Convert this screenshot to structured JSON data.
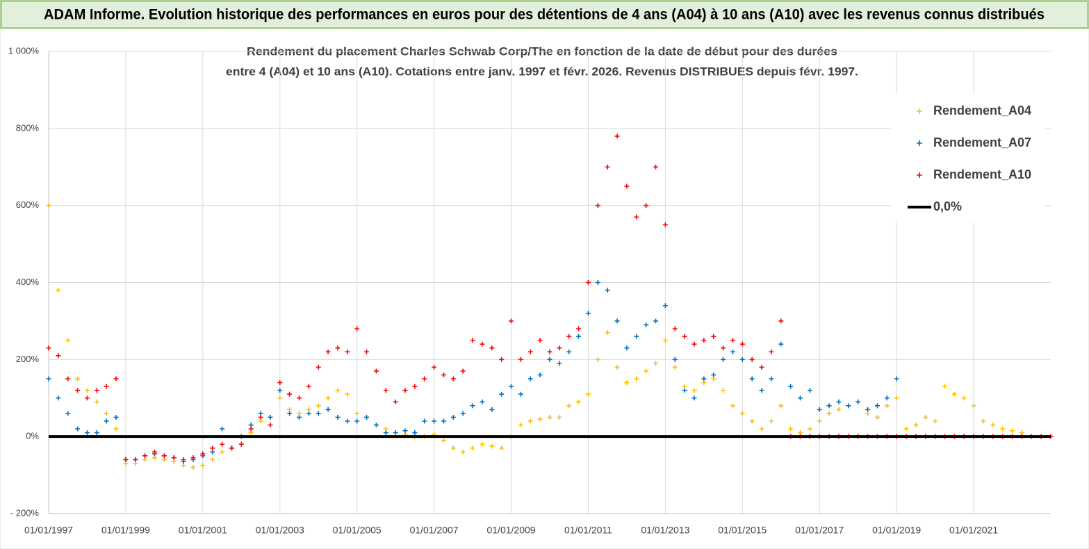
{
  "chart_data": {
    "type": "scatter",
    "title": "ADAM Informe. Evolution historique des performances en euros pour des détentions de 4 ans (A04) à 10 ans (A10) avec les revenus connus distribués",
    "subtitle": [
      "Rendement du placement Charles Schwab Corp/The en fonction de la date de début pour des durées",
      "entre 4 (A04) et 10 ans (A10).  Cotations entre janv. 1997 et févr. 2026. Revenus DISTRIBUES depuis févr. 1997."
    ],
    "xlim": [
      1997,
      2023
    ],
    "xticks": [
      {
        "value": 1997,
        "label": "01/01/1997"
      },
      {
        "value": 1999,
        "label": "01/01/1999"
      },
      {
        "value": 2001,
        "label": "01/01/2001"
      },
      {
        "value": 2003,
        "label": "01/01/2003"
      },
      {
        "value": 2005,
        "label": "01/01/2005"
      },
      {
        "value": 2007,
        "label": "01/01/2007"
      },
      {
        "value": 2009,
        "label": "01/01/2009"
      },
      {
        "value": 2011,
        "label": "01/01/2011"
      },
      {
        "value": 2013,
        "label": "01/01/2013"
      },
      {
        "value": 2015,
        "label": "01/01/2015"
      },
      {
        "value": 2017,
        "label": "01/01/2017"
      },
      {
        "value": 2019,
        "label": "01/01/2019"
      },
      {
        "value": 2021,
        "label": "01/01/2021"
      }
    ],
    "ylim": [
      -200,
      1000
    ],
    "yticks": [
      {
        "value": -200,
        "label": "- 200%"
      },
      {
        "value": 0,
        "label": "0%"
      },
      {
        "value": 200,
        "label": "200%"
      },
      {
        "value": 400,
        "label": "400%"
      },
      {
        "value": 600,
        "label": "600%"
      },
      {
        "value": 800,
        "label": "800%"
      },
      {
        "value": 1000,
        "label": "1 000%"
      }
    ],
    "grid": true,
    "legend": "right",
    "series": [
      {
        "name": "Rendement_A04",
        "color": "#ffc000",
        "x": [
          1997,
          1997.25,
          1997.5,
          1997.75,
          1998,
          1998.25,
          1998.5,
          1998.75,
          1999,
          1999.25,
          1999.5,
          1999.75,
          2000,
          2000.25,
          2000.5,
          2000.75,
          2001,
          2001.25,
          2001.5,
          2001.75,
          2002,
          2002.25,
          2002.5,
          2002.75,
          2003,
          2003.25,
          2003.5,
          2003.75,
          2004,
          2004.25,
          2004.5,
          2004.75,
          2005,
          2005.25,
          2005.5,
          2005.75,
          2006,
          2006.25,
          2006.5,
          2006.75,
          2007,
          2007.25,
          2007.5,
          2007.75,
          2008,
          2008.25,
          2008.5,
          2008.75,
          2009,
          2009.25,
          2009.5,
          2009.75,
          2010,
          2010.25,
          2010.5,
          2010.75,
          2011,
          2011.25,
          2011.5,
          2011.75,
          2012,
          2012.25,
          2012.5,
          2012.75,
          2013,
          2013.25,
          2013.5,
          2013.75,
          2014,
          2014.25,
          2014.5,
          2014.75,
          2015,
          2015.25,
          2015.5,
          2015.75,
          2016,
          2016.25,
          2016.5,
          2016.75,
          2017,
          2017.25,
          2017.5,
          2017.75,
          2018,
          2018.25,
          2018.5,
          2018.75,
          2019,
          2019.25,
          2019.5,
          2019.75,
          2020,
          2020.25,
          2020.5,
          2020.75,
          2021,
          2021.25,
          2021.5,
          2021.75,
          2022,
          2022.25
        ],
        "values": [
          600,
          380,
          250,
          150,
          120,
          90,
          60,
          20,
          -70,
          -70,
          -60,
          -55,
          -60,
          -65,
          -75,
          -80,
          -75,
          -60,
          -40,
          -30,
          -20,
          10,
          40,
          50,
          100,
          70,
          60,
          70,
          80,
          100,
          120,
          110,
          60,
          50,
          30,
          20,
          10,
          5,
          0,
          0,
          5,
          -10,
          -30,
          -40,
          -30,
          -20,
          -25,
          -30,
          0,
          30,
          40,
          45,
          50,
          50,
          80,
          90,
          110,
          200,
          270,
          180,
          140,
          150,
          170,
          190,
          250,
          180,
          130,
          120,
          140,
          150,
          120,
          80,
          60,
          40,
          20,
          40,
          80,
          20,
          10,
          20,
          40,
          60,
          70,
          80,
          90,
          60,
          50,
          80,
          100,
          20,
          30,
          50,
          40,
          130,
          110,
          100,
          80,
          40,
          30,
          20,
          15,
          10
        ]
      },
      {
        "name": "Rendement_A07",
        "color": "#0070c0",
        "x": [
          1997,
          1997.25,
          1997.5,
          1997.75,
          1998,
          1998.25,
          1998.5,
          1998.75,
          1999,
          1999.25,
          1999.5,
          1999.75,
          2000,
          2000.25,
          2000.5,
          2000.75,
          2001,
          2001.25,
          2001.5,
          2001.75,
          2002,
          2002.25,
          2002.5,
          2002.75,
          2003,
          2003.25,
          2003.5,
          2003.75,
          2004,
          2004.25,
          2004.5,
          2004.75,
          2005,
          2005.25,
          2005.5,
          2005.75,
          2006,
          2006.25,
          2006.5,
          2006.75,
          2007,
          2007.25,
          2007.5,
          2007.75,
          2008,
          2008.25,
          2008.5,
          2008.75,
          2009,
          2009.25,
          2009.5,
          2009.75,
          2010,
          2010.25,
          2010.5,
          2010.75,
          2011,
          2011.25,
          2011.5,
          2011.75,
          2012,
          2012.25,
          2012.5,
          2012.75,
          2013,
          2013.25,
          2013.5,
          2013.75,
          2014,
          2014.25,
          2014.5,
          2014.75,
          2015,
          2015.25,
          2015.5,
          2015.75,
          2016,
          2016.25,
          2016.5,
          2016.75,
          2017,
          2017.25,
          2017.5,
          2017.75,
          2018,
          2018.25,
          2018.5,
          2018.75,
          2019
        ],
        "values": [
          150,
          100,
          60,
          20,
          10,
          10,
          40,
          50,
          -60,
          -60,
          -50,
          -45,
          -50,
          -55,
          -65,
          -60,
          -50,
          -40,
          20,
          -30,
          0,
          30,
          60,
          50,
          120,
          60,
          50,
          60,
          60,
          70,
          50,
          40,
          40,
          50,
          30,
          10,
          10,
          15,
          10,
          40,
          40,
          40,
          50,
          60,
          80,
          90,
          70,
          110,
          130,
          110,
          150,
          160,
          200,
          190,
          220,
          260,
          320,
          400,
          380,
          300,
          230,
          260,
          290,
          300,
          340,
          200,
          120,
          100,
          150,
          160,
          200,
          220,
          200,
          150,
          120,
          150,
          240,
          130,
          100,
          120,
          70,
          80,
          90,
          80,
          90,
          70,
          80,
          100,
          150
        ]
      },
      {
        "name": "Rendement_A10",
        "color": "#ff0000",
        "x": [
          1997,
          1997.25,
          1997.5,
          1997.75,
          1998,
          1998.25,
          1998.5,
          1998.75,
          1999,
          1999.25,
          1999.5,
          1999.75,
          2000,
          2000.25,
          2000.5,
          2000.75,
          2001,
          2001.25,
          2001.5,
          2001.75,
          2002,
          2002.25,
          2002.5,
          2002.75,
          2003,
          2003.25,
          2003.5,
          2003.75,
          2004,
          2004.25,
          2004.5,
          2004.75,
          2005,
          2005.25,
          2005.5,
          2005.75,
          2006,
          2006.25,
          2006.5,
          2006.75,
          2007,
          2007.25,
          2007.5,
          2007.75,
          2008,
          2008.25,
          2008.5,
          2008.75,
          2009,
          2009.25,
          2009.5,
          2009.75,
          2010,
          2010.25,
          2010.5,
          2010.75,
          2011,
          2011.25,
          2011.5,
          2011.75,
          2012,
          2012.25,
          2012.5,
          2012.75,
          2013,
          2013.25,
          2013.5,
          2013.75,
          2014,
          2014.25,
          2014.5,
          2014.75,
          2015,
          2015.25,
          2015.5,
          2015.75,
          2016,
          2016.25,
          2016.5,
          2016.75,
          2017,
          2017.25,
          2017.5,
          2017.75,
          2018,
          2018.25,
          2018.5,
          2018.75,
          2019,
          2019.25,
          2019.5,
          2019.75,
          2020,
          2020.25,
          2020.5,
          2020.75,
          2021,
          2021.25,
          2021.5,
          2021.75,
          2022,
          2022.25,
          2022.5,
          2022.75,
          2023
        ],
        "values": [
          230,
          210,
          150,
          120,
          100,
          120,
          130,
          150,
          -60,
          -60,
          -50,
          -40,
          -50,
          -55,
          -60,
          -55,
          -45,
          -30,
          -20,
          -30,
          -20,
          20,
          50,
          30,
          140,
          110,
          100,
          130,
          180,
          220,
          230,
          220,
          280,
          220,
          170,
          120,
          90,
          120,
          130,
          150,
          180,
          160,
          150,
          170,
          250,
          240,
          230,
          200,
          300,
          200,
          220,
          250,
          220,
          230,
          260,
          280,
          400,
          600,
          700,
          780,
          650,
          570,
          600,
          700,
          550,
          280,
          260,
          240,
          250,
          260,
          230,
          250,
          240,
          200,
          180,
          220,
          300,
          0,
          0,
          0,
          0,
          0,
          0,
          0,
          0,
          0,
          0,
          0,
          0,
          0,
          0,
          0,
          0,
          0,
          0,
          0,
          0,
          0,
          0,
          0,
          0,
          0,
          0,
          0,
          0
        ]
      },
      {
        "name": "0,0%",
        "color": "#000000",
        "type": "line",
        "x": [
          1997,
          2023
        ],
        "values": [
          0,
          0
        ]
      }
    ]
  }
}
